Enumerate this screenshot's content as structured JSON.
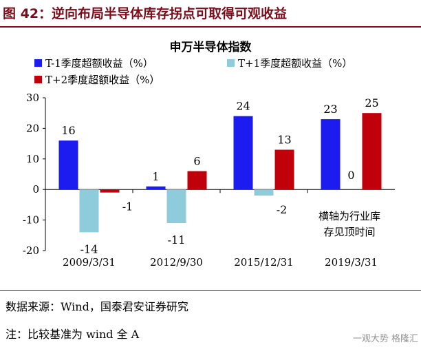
{
  "header": {
    "figure_title": "图 42：逆向布局半导体库存拐点可取得可观收益"
  },
  "chart_data": {
    "type": "bar",
    "title": "申万半导体指数",
    "categories": [
      "2009/3/31",
      "2012/9/30",
      "2015/12/31",
      "2019/3/31"
    ],
    "series": [
      {
        "name": "T-1季度超额收益（%）",
        "color": "#1c1cf0",
        "values": [
          16,
          1,
          24,
          23
        ]
      },
      {
        "name": "T+1季度超额收益（%）",
        "color": "#8ecbdb",
        "values": [
          -14,
          -11,
          -2,
          0
        ]
      },
      {
        "name": "T+2季度超额收益（%）",
        "color": "#c0000b",
        "values": [
          -1,
          6,
          13,
          25
        ]
      }
    ],
    "data_labels": [
      [
        "16",
        "-14",
        "-1"
      ],
      [
        "1",
        "-11",
        "6"
      ],
      [
        "24",
        "-2",
        "13"
      ],
      [
        "23",
        "0",
        "25"
      ]
    ],
    "ylim": [
      -20,
      30
    ],
    "yticks": [
      "-20",
      "-10",
      "0",
      "10",
      "20",
      "30"
    ],
    "xlabel": "",
    "ylabel": "",
    "annotation_lines": [
      "横轴为行业库",
      "存见顶时间"
    ],
    "legend_position": "top-left",
    "grid": false
  },
  "footer": {
    "source": "数据来源：Wind，国泰君安证券研究",
    "note": "注：比较基准为 wind 全 A"
  },
  "watermark": "一观大势 格隆汇"
}
